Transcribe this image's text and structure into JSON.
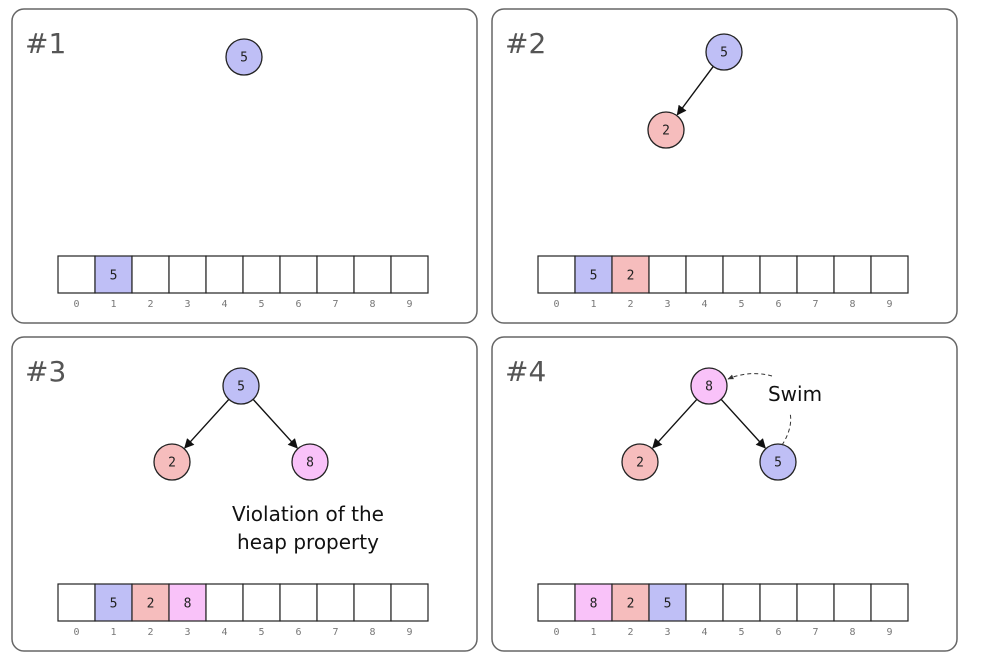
{
  "colors": {
    "blue": "#bfbff6",
    "red": "#f6bdbd",
    "pink": "#f9c2f9",
    "empty": "#ffffff"
  },
  "panels": [
    {
      "label": "#1",
      "nodes": [
        {
          "id": "root",
          "value": "5",
          "color": "blue"
        }
      ],
      "edges": [],
      "array": [
        {
          "index": "0",
          "value": "",
          "color": "empty"
        },
        {
          "index": "1",
          "value": "5",
          "color": "blue"
        },
        {
          "index": "2",
          "value": "",
          "color": "empty"
        },
        {
          "index": "3",
          "value": "",
          "color": "empty"
        },
        {
          "index": "4",
          "value": "",
          "color": "empty"
        },
        {
          "index": "5",
          "value": "",
          "color": "empty"
        },
        {
          "index": "6",
          "value": "",
          "color": "empty"
        },
        {
          "index": "7",
          "value": "",
          "color": "empty"
        },
        {
          "index": "8",
          "value": "",
          "color": "empty"
        },
        {
          "index": "9",
          "value": "",
          "color": "empty"
        }
      ]
    },
    {
      "label": "#2",
      "nodes": [
        {
          "id": "root",
          "value": "5",
          "color": "blue"
        },
        {
          "id": "left",
          "value": "2",
          "color": "red"
        }
      ],
      "edges": [
        [
          "root",
          "left"
        ]
      ],
      "array": [
        {
          "index": "0",
          "value": "",
          "color": "empty"
        },
        {
          "index": "1",
          "value": "5",
          "color": "blue"
        },
        {
          "index": "2",
          "value": "2",
          "color": "red"
        },
        {
          "index": "3",
          "value": "",
          "color": "empty"
        },
        {
          "index": "4",
          "value": "",
          "color": "empty"
        },
        {
          "index": "5",
          "value": "",
          "color": "empty"
        },
        {
          "index": "6",
          "value": "",
          "color": "empty"
        },
        {
          "index": "7",
          "value": "",
          "color": "empty"
        },
        {
          "index": "8",
          "value": "",
          "color": "empty"
        },
        {
          "index": "9",
          "value": "",
          "color": "empty"
        }
      ]
    },
    {
      "label": "#3",
      "nodes": [
        {
          "id": "root",
          "value": "5",
          "color": "blue"
        },
        {
          "id": "left",
          "value": "2",
          "color": "red"
        },
        {
          "id": "right",
          "value": "8",
          "color": "pink"
        }
      ],
      "edges": [
        [
          "root",
          "left"
        ],
        [
          "root",
          "right"
        ]
      ],
      "annotation": [
        "Violation of the",
        "heap property"
      ],
      "array": [
        {
          "index": "0",
          "value": "",
          "color": "empty"
        },
        {
          "index": "1",
          "value": "5",
          "color": "blue"
        },
        {
          "index": "2",
          "value": "2",
          "color": "red"
        },
        {
          "index": "3",
          "value": "8",
          "color": "pink"
        },
        {
          "index": "4",
          "value": "",
          "color": "empty"
        },
        {
          "index": "5",
          "value": "",
          "color": "empty"
        },
        {
          "index": "6",
          "value": "",
          "color": "empty"
        },
        {
          "index": "7",
          "value": "",
          "color": "empty"
        },
        {
          "index": "8",
          "value": "",
          "color": "empty"
        },
        {
          "index": "9",
          "value": "",
          "color": "empty"
        }
      ]
    },
    {
      "label": "#4",
      "nodes": [
        {
          "id": "root",
          "value": "8",
          "color": "pink"
        },
        {
          "id": "left",
          "value": "2",
          "color": "red"
        },
        {
          "id": "right",
          "value": "5",
          "color": "blue"
        }
      ],
      "edges": [
        [
          "root",
          "left"
        ],
        [
          "root",
          "right"
        ]
      ],
      "swim_label": "Swim",
      "array": [
        {
          "index": "0",
          "value": "",
          "color": "empty"
        },
        {
          "index": "1",
          "value": "8",
          "color": "pink"
        },
        {
          "index": "2",
          "value": "2",
          "color": "red"
        },
        {
          "index": "3",
          "value": "5",
          "color": "blue"
        },
        {
          "index": "4",
          "value": "",
          "color": "empty"
        },
        {
          "index": "5",
          "value": "",
          "color": "empty"
        },
        {
          "index": "6",
          "value": "",
          "color": "empty"
        },
        {
          "index": "7",
          "value": "",
          "color": "empty"
        },
        {
          "index": "8",
          "value": "",
          "color": "empty"
        },
        {
          "index": "9",
          "value": "",
          "color": "empty"
        }
      ]
    }
  ]
}
